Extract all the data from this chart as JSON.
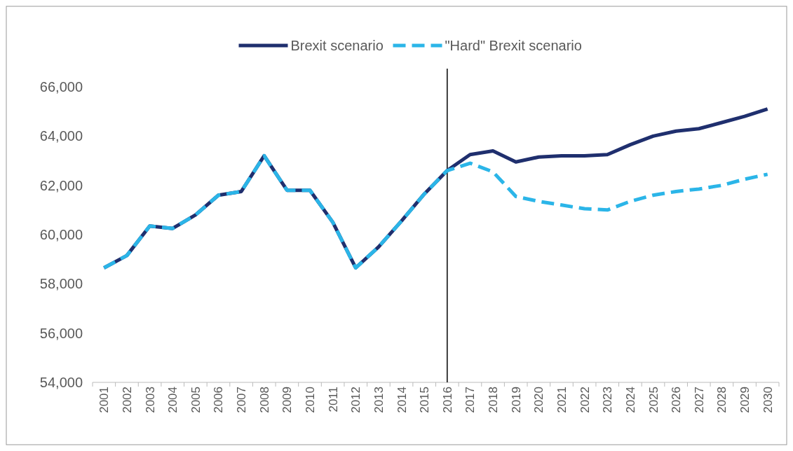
{
  "chart_data": {
    "type": "line",
    "categories": [
      "2001",
      "2002",
      "2003",
      "2004",
      "2005",
      "2006",
      "2007",
      "2008",
      "2009",
      "2010",
      "2011",
      "2012",
      "2013",
      "2014",
      "2015",
      "2016",
      "2017",
      "2018",
      "2019",
      "2020",
      "2021",
      "2022",
      "2023",
      "2024",
      "2025",
      "2026",
      "2027",
      "2028",
      "2029",
      "2030"
    ],
    "series": [
      {
        "name": "Brexit scenario",
        "color": "#1f2f6e",
        "line_style": "solid",
        "values": [
          58650,
          59150,
          60350,
          60250,
          60800,
          61600,
          61750,
          63200,
          61800,
          61800,
          60500,
          58650,
          59500,
          60550,
          61650,
          62600,
          63250,
          63400,
          62950,
          63150,
          63200,
          63200,
          63250,
          63650,
          64000,
          64200,
          64300,
          64550,
          64800,
          65100
        ]
      },
      {
        "name": "\"Hard\" Brexit scenario",
        "color": "#2bb5e8",
        "line_style": "dashed",
        "values": [
          58650,
          59150,
          60350,
          60250,
          60800,
          61600,
          61750,
          63200,
          61800,
          61800,
          60500,
          58650,
          59500,
          60550,
          61650,
          62600,
          62900,
          62550,
          61550,
          61350,
          61200,
          61050,
          61000,
          61350,
          61600,
          61750,
          61850,
          62000,
          62250,
          62450
        ]
      }
    ],
    "ylim": [
      54000,
      66000
    ],
    "yticks": [
      {
        "value": 54000,
        "label": "54,000"
      },
      {
        "value": 56000,
        "label": "56,000"
      },
      {
        "value": 58000,
        "label": "58,000"
      },
      {
        "value": 60000,
        "label": "60,000"
      },
      {
        "value": 62000,
        "label": "62,000"
      },
      {
        "value": 64000,
        "label": "64,000"
      },
      {
        "value": 66000,
        "label": "66,000"
      }
    ],
    "ref_lines": [
      {
        "axis": "x",
        "value": "2016",
        "color": "#000000"
      }
    ],
    "legend": "top",
    "grid": false,
    "marker": "none"
  }
}
